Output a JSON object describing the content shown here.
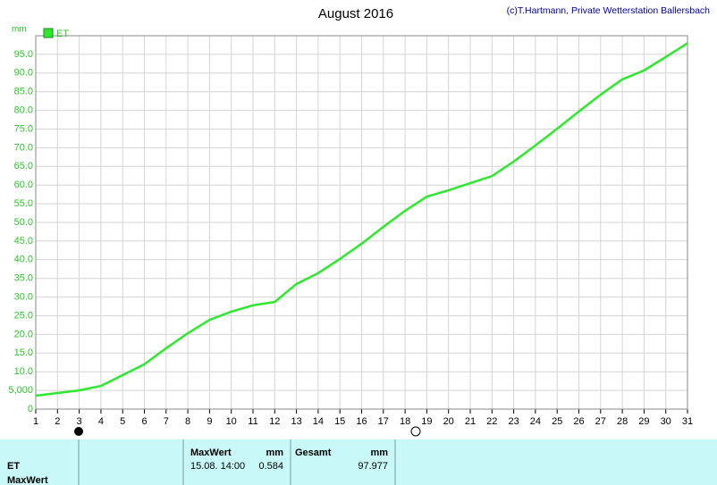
{
  "chart_data": {
    "type": "line",
    "title": "August 2016",
    "subtitle": "(c)T.Hartmann, Private Wetterstation Ballersbach",
    "y_label": "mm",
    "x": [
      1,
      2,
      3,
      4,
      5,
      6,
      7,
      8,
      9,
      10,
      11,
      12,
      13,
      14,
      15,
      16,
      17,
      18,
      19,
      20,
      21,
      22,
      23,
      24,
      25,
      26,
      27,
      28,
      29,
      30,
      31
    ],
    "series": [
      {
        "name": "ET",
        "color": "#2ee82e",
        "values": [
          3.6,
          4.3,
          5.0,
          6.2,
          9.1,
          12.0,
          16.3,
          20.3,
          23.9,
          26.1,
          27.8,
          28.7,
          33.5,
          36.4,
          40.2,
          44.3,
          48.8,
          53.1,
          56.9,
          58.6,
          60.5,
          62.4,
          66.3,
          70.6,
          75.1,
          79.7,
          84.2,
          88.3,
          90.7,
          94.3,
          98.0
        ]
      }
    ],
    "xlim": [
      1,
      31
    ],
    "xticks": [
      1,
      2,
      3,
      4,
      5,
      6,
      7,
      8,
      9,
      10,
      11,
      12,
      13,
      14,
      15,
      16,
      17,
      18,
      19,
      20,
      21,
      22,
      23,
      24,
      25,
      26,
      27,
      28,
      29,
      30,
      31
    ],
    "ylim": [
      0,
      100
    ],
    "yticks": [
      0,
      {
        "value": 5,
        "label": "5,000"
      },
      {
        "value": 10,
        "label": "10.0"
      },
      {
        "value": 15,
        "label": "15.0"
      },
      {
        "value": 20,
        "label": "20.0"
      },
      {
        "value": 25,
        "label": "25.0"
      },
      {
        "value": 30,
        "label": "30.0"
      },
      {
        "value": 35,
        "label": "35.0"
      },
      {
        "value": 40,
        "label": "40.0"
      },
      {
        "value": 45,
        "label": "45.0"
      },
      {
        "value": 50,
        "label": "50.0"
      },
      {
        "value": 55,
        "label": "55.0"
      },
      {
        "value": 60,
        "label": "60.0"
      },
      {
        "value": 65,
        "label": "65.0"
      },
      {
        "value": 70,
        "label": "70.0"
      },
      {
        "value": 75,
        "label": "75.0"
      },
      {
        "value": 80,
        "label": "80.0"
      },
      {
        "value": 85,
        "label": "85.0"
      },
      {
        "value": 90,
        "label": "90.0"
      },
      {
        "value": 95,
        "label": "95.0"
      }
    ],
    "grid": true
  },
  "summary": {
    "row_labels": [
      "ET",
      "MaxWert"
    ],
    "max_header": "MaxWert",
    "max_unit": "mm",
    "max_time": "15.08. 14:00",
    "max_value": "0.584",
    "total_header": "Gesamt",
    "total_unit": "mm",
    "total_value": "97.977"
  }
}
